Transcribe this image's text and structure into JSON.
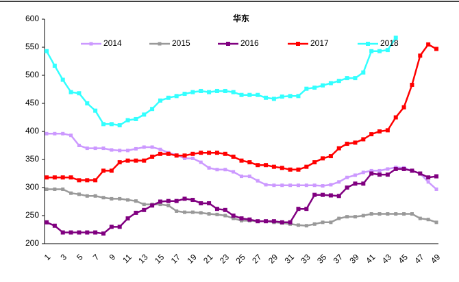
{
  "chart_data": {
    "type": "line",
    "title": "华东",
    "categories": [
      "1",
      null,
      "3",
      null,
      "5",
      null,
      "7",
      null,
      "9",
      null,
      "11",
      null,
      "13",
      null,
      "15",
      null,
      "17",
      null,
      "19",
      null,
      "21",
      null,
      "23",
      null,
      "25",
      null,
      "27",
      null,
      "29",
      null,
      "31",
      null,
      "33",
      null,
      "35",
      null,
      "37",
      null,
      "39",
      null,
      "41",
      null,
      "43",
      null,
      "45",
      null,
      "47",
      null,
      "49"
    ],
    "series": [
      {
        "name": "2014",
        "color": "#cc99ff",
        "values": [
          396,
          396,
          396,
          393,
          375,
          370,
          370,
          370,
          367,
          366,
          366,
          369,
          372,
          372,
          368,
          362,
          358,
          352,
          352,
          345,
          335,
          332,
          332,
          328,
          320,
          320,
          312,
          305,
          304,
          304,
          304,
          304,
          304,
          304,
          303,
          305,
          310,
          318,
          322,
          327,
          330,
          330,
          333,
          336,
          335,
          330,
          325,
          310,
          297
        ]
      },
      {
        "name": "2015",
        "color": "#999999",
        "values": [
          297,
          297,
          297,
          290,
          288,
          285,
          285,
          282,
          280,
          280,
          278,
          276,
          270,
          270,
          270,
          268,
          258,
          256,
          256,
          255,
          253,
          252,
          250,
          245,
          241,
          241,
          240,
          240,
          238,
          237,
          235,
          233,
          232,
          235,
          238,
          238,
          245,
          248,
          248,
          250,
          253,
          253,
          253,
          253,
          253,
          253,
          245,
          243,
          238
        ]
      },
      {
        "name": "2016",
        "color": "#800080",
        "values": [
          238,
          232,
          220,
          220,
          220,
          220,
          220,
          218,
          230,
          230,
          245,
          255,
          260,
          268,
          275,
          276,
          276,
          280,
          278,
          272,
          272,
          262,
          260,
          250,
          245,
          243,
          240,
          240,
          240,
          238,
          238,
          262,
          262,
          287,
          287,
          286,
          285,
          300,
          307,
          307,
          325,
          323,
          323,
          333,
          333,
          330,
          325,
          318,
          320
        ]
      },
      {
        "name": "2017",
        "color": "#ff0000",
        "values": [
          318,
          318,
          318,
          318,
          313,
          313,
          313,
          330,
          330,
          345,
          348,
          348,
          348,
          355,
          360,
          360,
          357,
          357,
          360,
          362,
          362,
          362,
          360,
          355,
          348,
          345,
          340,
          340,
          337,
          335,
          332,
          332,
          337,
          345,
          352,
          356,
          370,
          378,
          380,
          386,
          395,
          400,
          402,
          425,
          443,
          483,
          535,
          555,
          547
        ]
      },
      {
        "name": "2018",
        "color": "#33ffff",
        "values": [
          543,
          517,
          492,
          470,
          468,
          450,
          437,
          413,
          413,
          411,
          420,
          422,
          430,
          440,
          455,
          460,
          463,
          467,
          470,
          472,
          470,
          472,
          472,
          470,
          465,
          465,
          465,
          460,
          458,
          462,
          463,
          463,
          476,
          478,
          482,
          486,
          490,
          495,
          495,
          505,
          543,
          543,
          545,
          567,
          null,
          null,
          null,
          null,
          null
        ]
      }
    ],
    "ylim": [
      200,
      600
    ],
    "yticks": [
      200,
      250,
      300,
      350,
      400,
      450,
      500,
      550,
      600
    ],
    "grid": false,
    "legend": "top"
  }
}
